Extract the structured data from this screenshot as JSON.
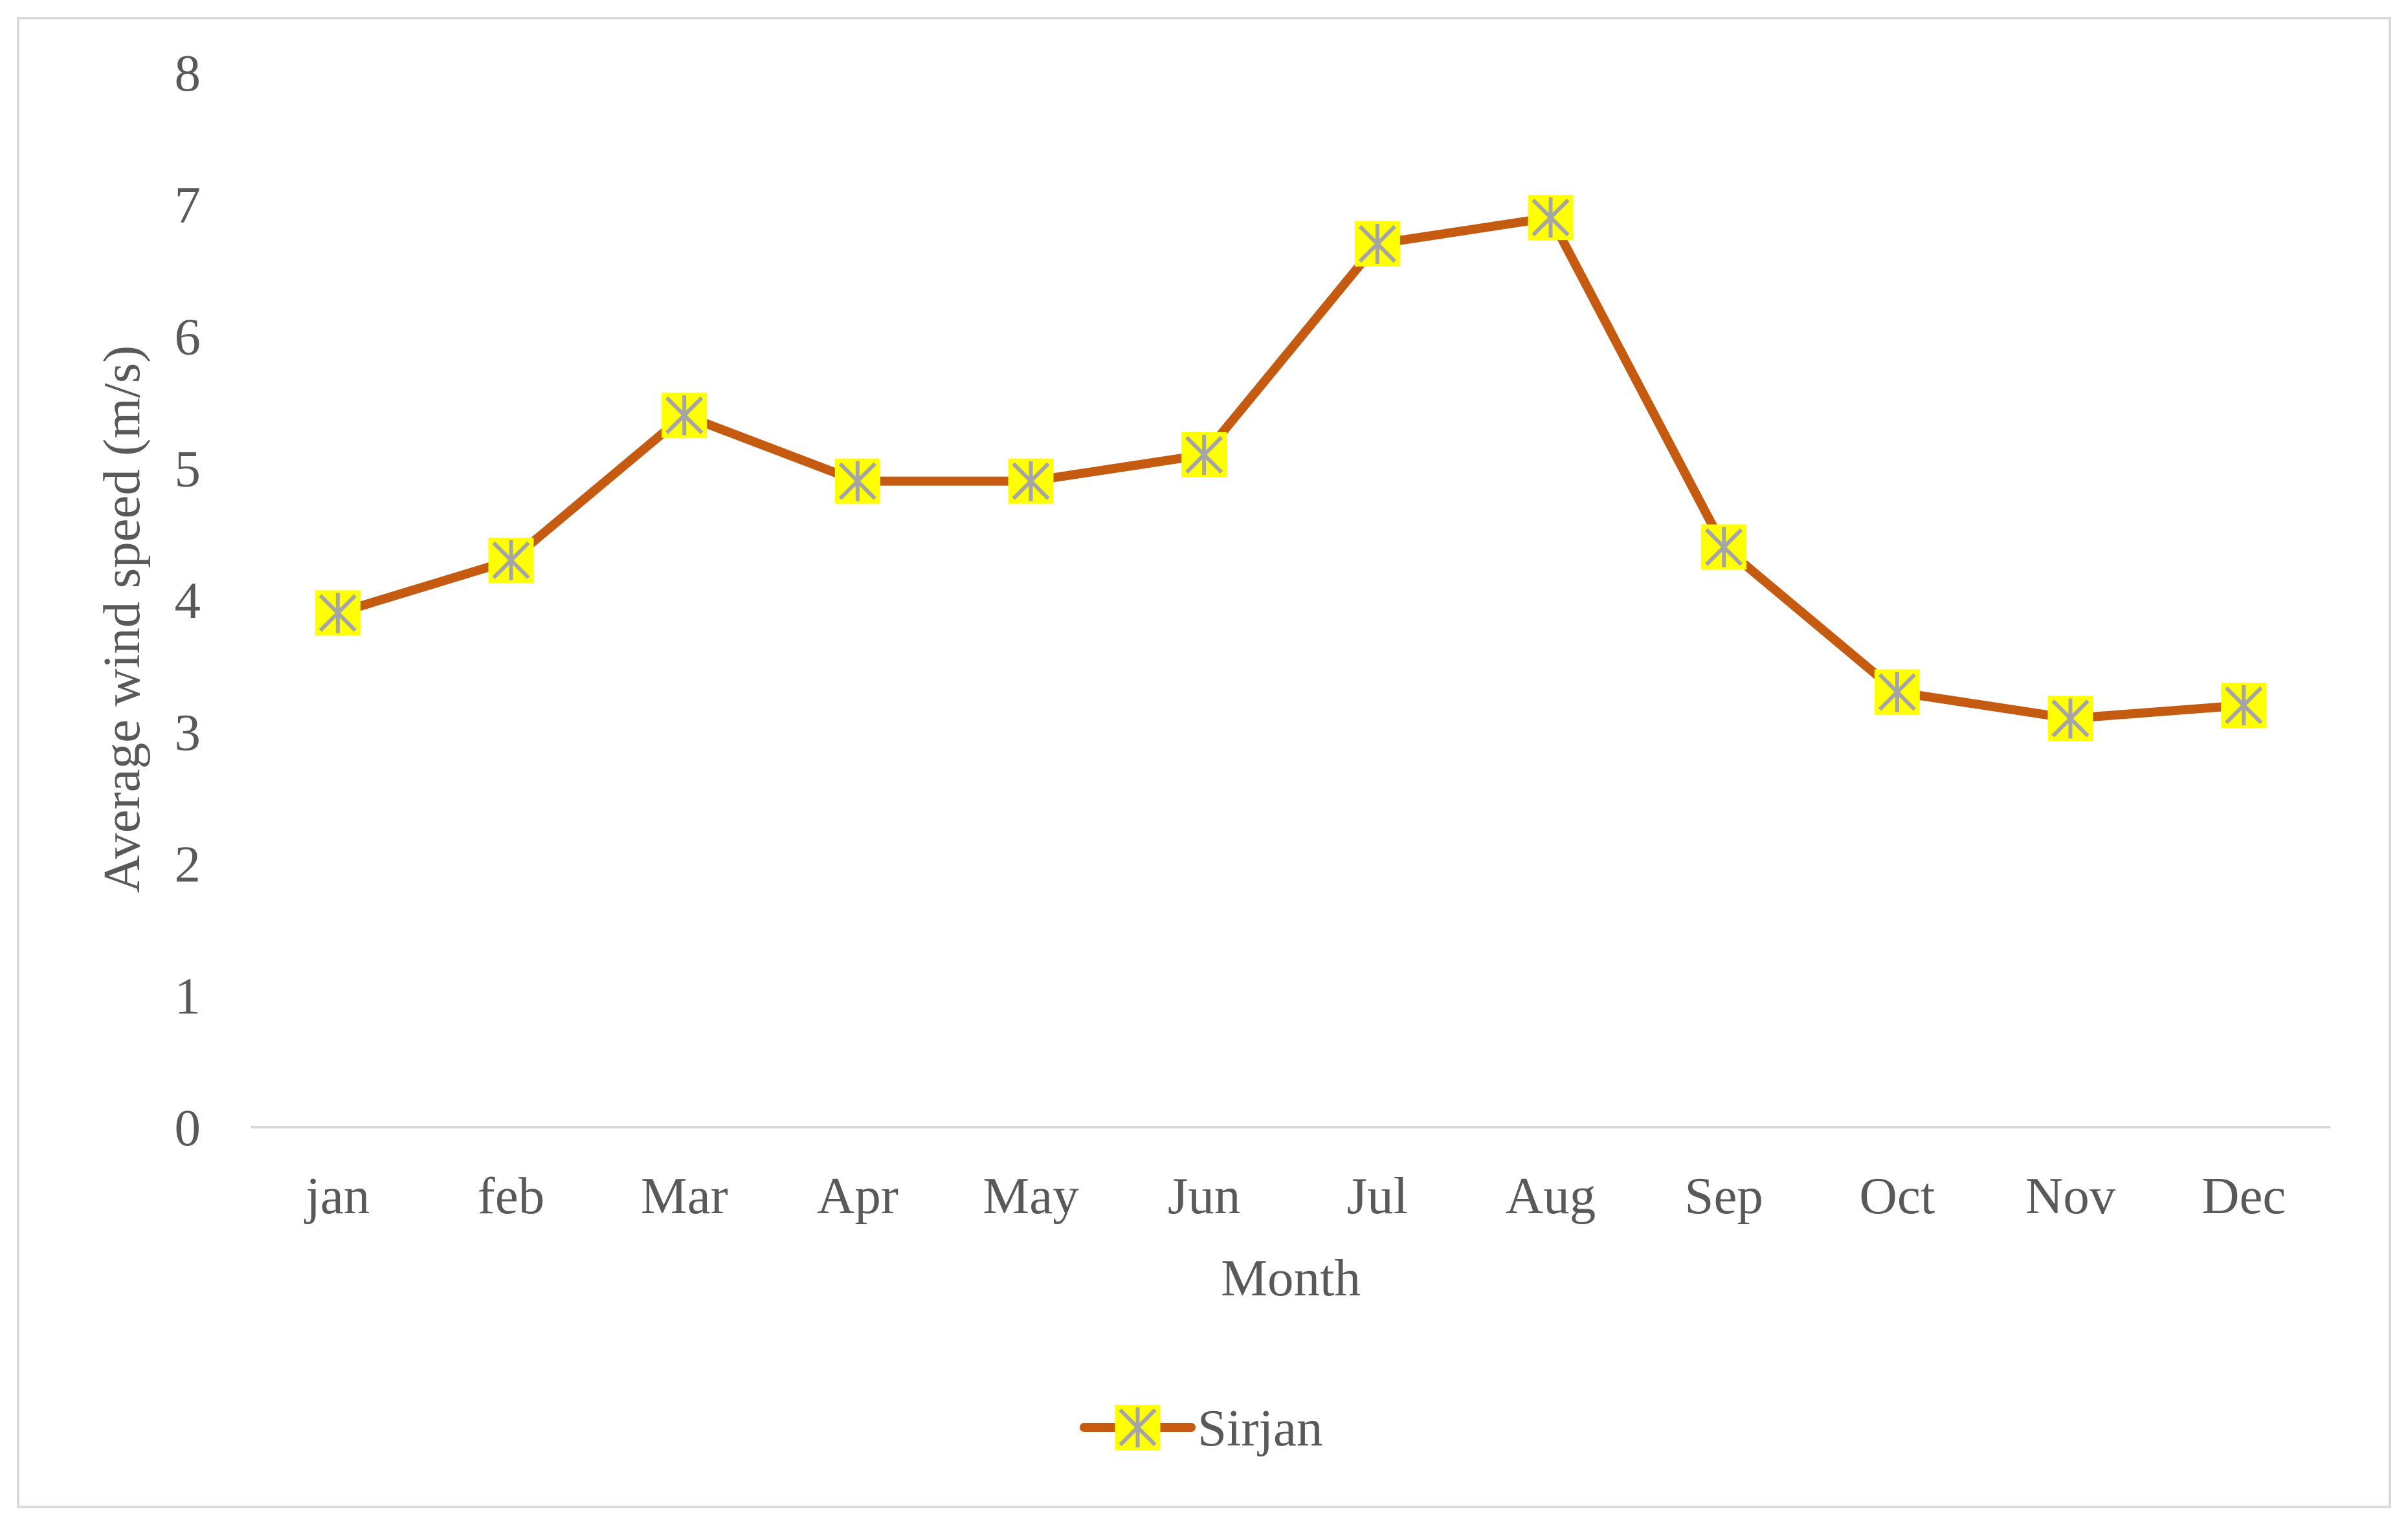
{
  "chart_data": {
    "type": "line",
    "categories": [
      "jan",
      "feb",
      "Mar",
      "Apr",
      "May",
      "Jun",
      "Jul",
      "Aug",
      "Sep",
      "Oct",
      "Nov",
      "Dec"
    ],
    "series": [
      {
        "name": "Sirjan",
        "values": [
          3.9,
          4.3,
          5.4,
          4.9,
          4.9,
          5.1,
          6.7,
          6.9,
          4.4,
          3.3,
          3.1,
          3.2
        ]
      }
    ],
    "xlabel": "Month",
    "ylabel": "Average wind speed (m/s)",
    "ylim": [
      0,
      8
    ],
    "yticks": [
      0,
      1,
      2,
      3,
      4,
      5,
      6,
      7,
      8
    ],
    "grid": false,
    "legend": "bottom-center",
    "colors": {
      "line": "#c55a11",
      "marker_fill": "#ffff00",
      "marker_stroke": "#a5a5a5",
      "axis": "#d9d9d9",
      "text": "#595959"
    }
  }
}
